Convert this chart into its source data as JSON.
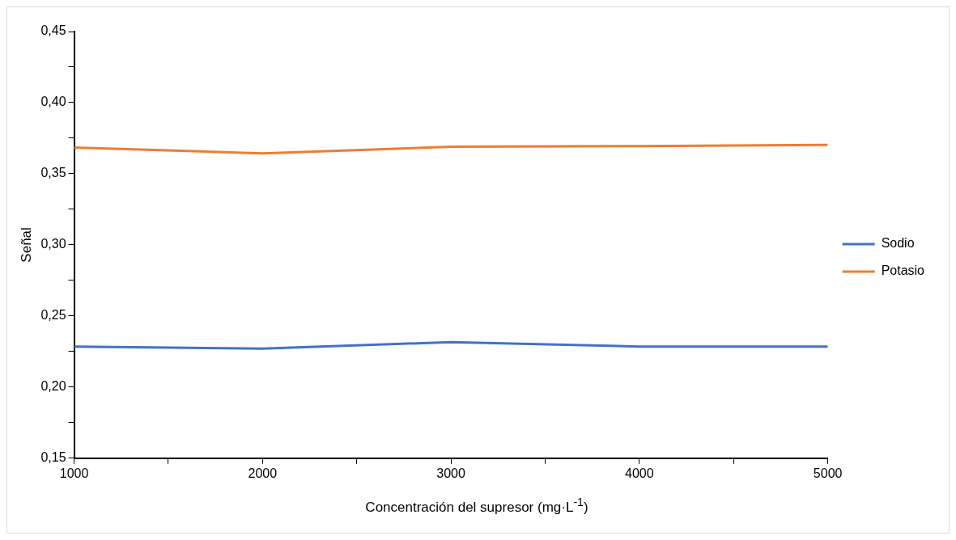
{
  "chart_data": {
    "type": "line",
    "xlabel": "Concentración del supresor (mg·L$^{-1}$)",
    "ylabel": "Señal",
    "x": [
      1000,
      2000,
      3000,
      4000,
      5000
    ],
    "series": [
      {
        "name": "Sodio",
        "color": "#4472c4",
        "values": [
          0.2285,
          0.2271,
          0.2316,
          0.2285,
          0.2285
        ]
      },
      {
        "name": "Potasio",
        "color": "#ed7d31",
        "values": [
          0.3685,
          0.3643,
          0.369,
          0.3695,
          0.3703
        ]
      }
    ],
    "xlim": [
      1000,
      5000
    ],
    "xticks": [
      1000,
      {
        "value": 1500,
        "label": null
      },
      2000,
      {
        "value": 2500,
        "label": null
      },
      3000,
      {
        "value": 3500,
        "label": null
      },
      4000,
      {
        "value": 4500,
        "label": null
      },
      5000
    ],
    "ylim": [
      0.15,
      0.45
    ],
    "yticks": [
      {
        "value": 0.15,
        "label": "0,15"
      },
      {
        "value": 0.175,
        "label": null
      },
      {
        "value": 0.2,
        "label": "0,20"
      },
      {
        "value": 0.225,
        "label": null
      },
      {
        "value": 0.25,
        "label": "0,25"
      },
      {
        "value": 0.275,
        "label": null
      },
      {
        "value": 0.3,
        "label": "0,30"
      },
      {
        "value": 0.325,
        "label": null
      },
      {
        "value": 0.35,
        "label": "0,35"
      },
      {
        "value": 0.375,
        "label": null
      },
      {
        "value": 0.4,
        "label": "0,40"
      },
      {
        "value": 0.425,
        "label": null
      },
      {
        "value": 0.45,
        "label": "0,45"
      }
    ],
    "grid": false,
    "legend": "right",
    "marker": "none",
    "line_style": "solid"
  }
}
